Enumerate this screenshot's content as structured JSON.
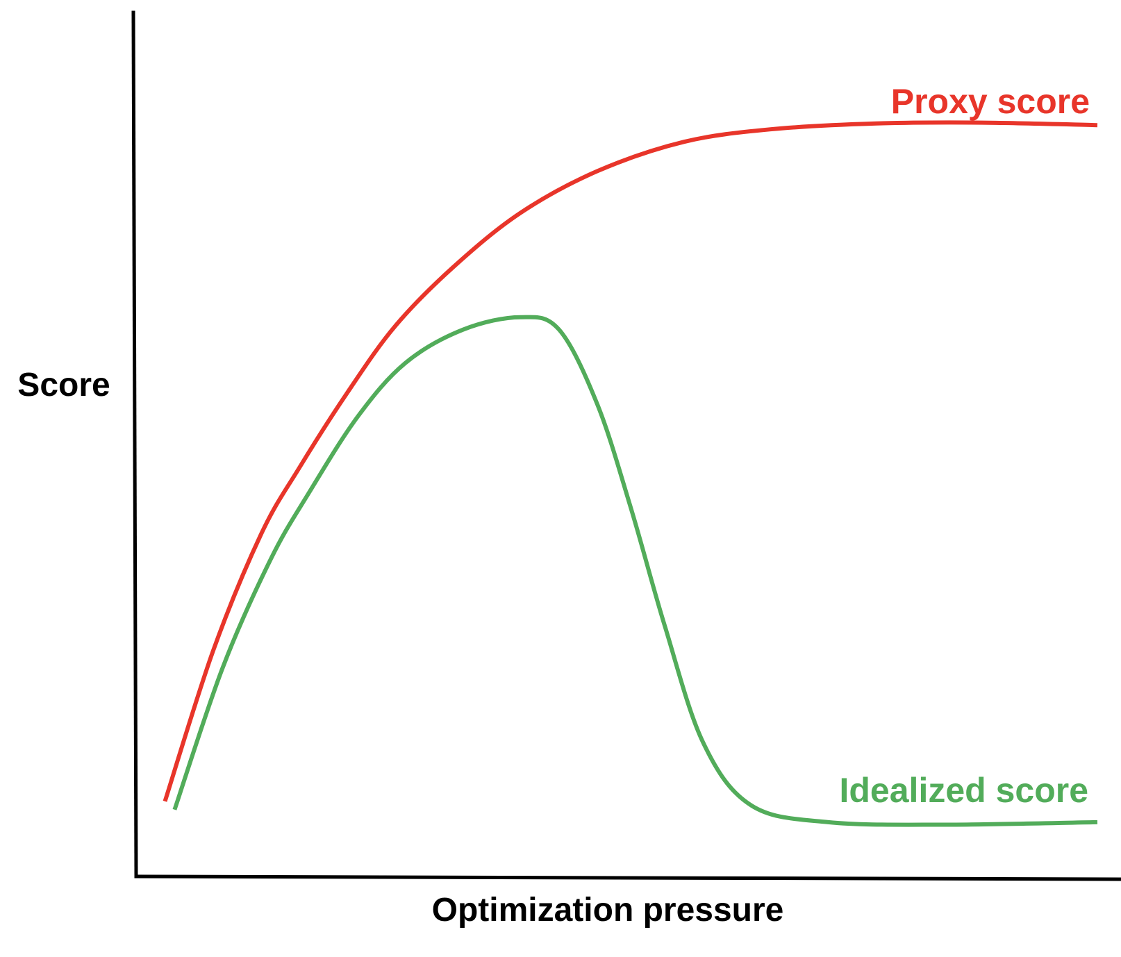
{
  "chart_data": {
    "type": "line",
    "xlabel": "Optimization pressure",
    "ylabel": "Score",
    "xlim": [
      0,
      100
    ],
    "ylim": [
      0,
      100
    ],
    "grid": false,
    "ticks": false,
    "colors": {
      "axis": "#000000",
      "proxy": "#e8352a",
      "idealized": "#52ac5a"
    },
    "series": [
      {
        "name": "Proxy score",
        "color": "#e8352a",
        "points": [
          [
            3.0,
            9.0
          ],
          [
            8.0,
            27.0
          ],
          [
            13.0,
            41.0
          ],
          [
            17.0,
            49.0
          ],
          [
            22.0,
            58.0
          ],
          [
            27.0,
            66.0
          ],
          [
            33.0,
            73.0
          ],
          [
            40.0,
            79.5
          ],
          [
            48.0,
            84.5
          ],
          [
            57.0,
            88.0
          ],
          [
            66.0,
            89.5
          ],
          [
            77.0,
            90.2
          ],
          [
            88.0,
            90.3
          ],
          [
            100.0,
            90.0
          ]
        ]
      },
      {
        "name": "Idealized score",
        "color": "#52ac5a",
        "points": [
          [
            4.0,
            8.0
          ],
          [
            9.0,
            25.0
          ],
          [
            14.0,
            38.0
          ],
          [
            18.0,
            46.0
          ],
          [
            23.0,
            55.0
          ],
          [
            28.0,
            61.5
          ],
          [
            34.0,
            65.5
          ],
          [
            40.0,
            67.0
          ],
          [
            44.0,
            65.5
          ],
          [
            48.0,
            56.5
          ],
          [
            51.5,
            44.0
          ],
          [
            55.0,
            30.0
          ],
          [
            59.0,
            16.0
          ],
          [
            64.0,
            8.5
          ],
          [
            72.0,
            6.5
          ],
          [
            84.0,
            6.2
          ],
          [
            100.0,
            6.5
          ]
        ]
      }
    ]
  }
}
